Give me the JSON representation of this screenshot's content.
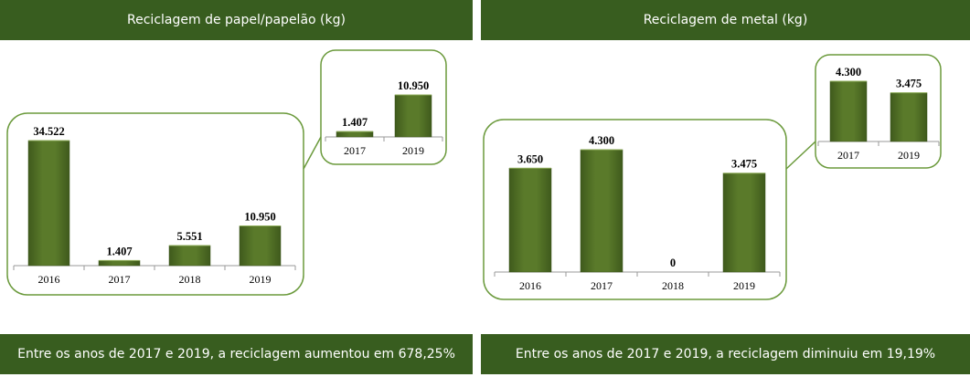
{
  "colors": {
    "banner": "#385d1f",
    "bar": "#5a7a2a",
    "border": "#6b9a3c"
  },
  "chart_data": [
    {
      "type": "bar",
      "title": "Reciclagem de papel/papelão (kg)",
      "categories": [
        "2016",
        "2017",
        "2018",
        "2019"
      ],
      "values": [
        34522,
        1407,
        5551,
        10950
      ],
      "value_labels": [
        "34.522",
        "1.407",
        "5.551",
        "10.950"
      ],
      "inset": {
        "categories": [
          "2017",
          "2019"
        ],
        "values": [
          1407,
          10950
        ],
        "value_labels": [
          "1.407",
          "10.950"
        ]
      },
      "footer": "Entre os anos de 2017 e 2019, a reciclagem aumentou em 678,25%"
    },
    {
      "type": "bar",
      "title": "Reciclagem de metal (kg)",
      "categories": [
        "2016",
        "2017",
        "2018",
        "2019"
      ],
      "values": [
        3650,
        4300,
        0,
        3475
      ],
      "value_labels": [
        "3.650",
        "4.300",
        "0",
        "3.475"
      ],
      "inset": {
        "categories": [
          "2017",
          "2019"
        ],
        "values": [
          4300,
          3475
        ],
        "value_labels": [
          "4.300",
          "3.475"
        ]
      },
      "footer": "Entre os anos de 2017 e 2019, a reciclagem diminuiu em 19,19%"
    }
  ]
}
